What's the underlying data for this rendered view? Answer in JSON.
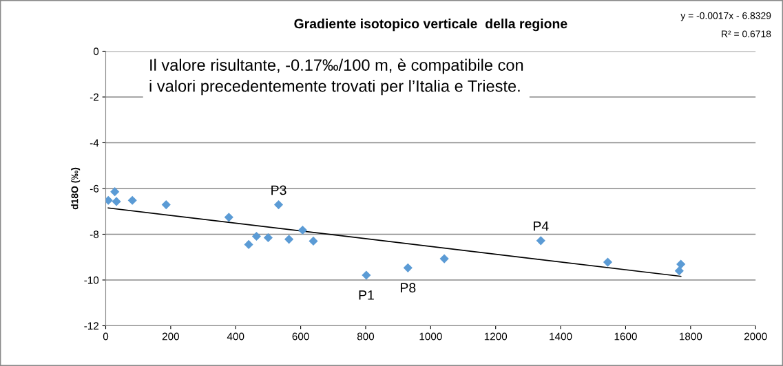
{
  "chart_data": {
    "type": "scatter",
    "title": "Gradiente isotopico verticale  della regione",
    "ylabel": "d18O (‰)",
    "x": [
      8,
      28,
      33,
      82,
      186,
      379,
      440,
      464,
      500,
      532,
      564,
      606,
      639,
      802,
      930,
      1042,
      1339,
      1545,
      1770,
      1765
    ],
    "series": [
      {
        "color": "#5b9bd5",
        "values": [
          -6.52,
          -6.14,
          -6.57,
          -6.52,
          -6.71,
          -7.26,
          -8.45,
          -8.09,
          -8.15,
          -6.71,
          -8.22,
          -7.82,
          -8.3,
          -9.79,
          -9.47,
          -9.07,
          -8.28,
          -9.22,
          -9.31,
          -9.6
        ],
        "marker": "diamond"
      },
      {
        "type": "line",
        "color": "#000000",
        "x": [
          8,
          1770
        ],
        "values": [
          -6.85,
          -9.84
        ],
        "marker": "none",
        "line_style": "solid"
      }
    ],
    "xlim": [
      0,
      2000
    ],
    "xticks": [
      0,
      200,
      400,
      600,
      800,
      1000,
      1200,
      1400,
      1600,
      1800,
      2000
    ],
    "ylim": [
      -12,
      0
    ],
    "yticks": [
      -12,
      -10,
      -8,
      -6,
      -4,
      -2,
      0
    ],
    "grid": "y",
    "legend": false,
    "annotations": [
      "y = -0.0017x - 6.8329",
      "R² = 0.6718",
      "Il valore risultante, -0.17‰/100 m, è compatibile con\ni valori precedentemente trovati per l’Italia e Trieste.",
      {
        "text": "P3",
        "x": 532,
        "y": -6.71
      },
      {
        "text": "P1",
        "x": 802,
        "y": -9.79
      },
      {
        "text": "P8",
        "x": 930,
        "y": -9.47
      },
      {
        "text": "P4",
        "x": 1339,
        "y": -8.28
      }
    ]
  }
}
